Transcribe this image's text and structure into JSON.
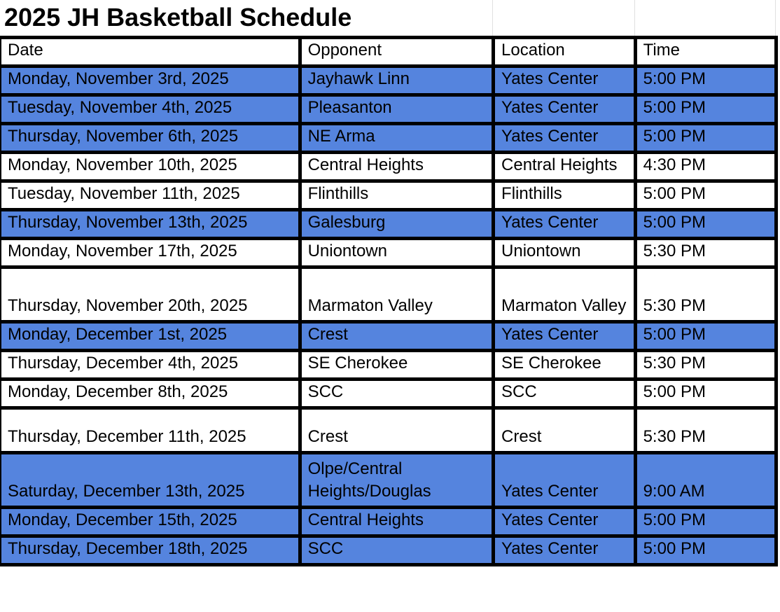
{
  "title": "2025 JH Basketball Schedule",
  "colors": {
    "home_highlight": "#5584de",
    "border": "#000000"
  },
  "columns": [
    "Date",
    "Opponent",
    "Location",
    "Time"
  ],
  "rows": [
    {
      "date": "Monday, November 3rd, 2025",
      "opponent": "Jayhawk Linn",
      "location": "Yates Center",
      "time": "5:00 PM",
      "highlighted": true
    },
    {
      "date": "Tuesday, November 4th, 2025",
      "opponent": "Pleasanton",
      "location": "Yates Center",
      "time": "5:00 PM",
      "highlighted": true
    },
    {
      "date": "Thursday, November 6th, 2025",
      "opponent": "NE Arma",
      "location": "Yates Center",
      "time": "5:00 PM",
      "highlighted": true
    },
    {
      "date": "Monday, November 10th, 2025",
      "opponent": "Central Heights",
      "location": "Central Heights",
      "time": "4:30 PM",
      "highlighted": false
    },
    {
      "date": "Tuesday, November 11th, 2025",
      "opponent": "Flinthills",
      "location": "Flinthills",
      "time": "5:00 PM",
      "highlighted": false
    },
    {
      "date": "Thursday, November 13th, 2025",
      "opponent": "Galesburg",
      "location": "Yates Center",
      "time": "5:00 PM",
      "highlighted": true
    },
    {
      "date": "Monday, November 17th, 2025",
      "opponent": "Uniontown",
      "location": "Uniontown",
      "time": "5:30 PM",
      "highlighted": false
    },
    {
      "date": "Thursday, November 20th, 2025",
      "opponent": "Marmaton Valley",
      "location": "Marmaton Valley",
      "time": "5:30 PM",
      "highlighted": false
    },
    {
      "date": "Monday, December 1st, 2025",
      "opponent": "Crest",
      "location": "Yates Center",
      "time": "5:00 PM",
      "highlighted": true
    },
    {
      "date": "Thursday, December 4th, 2025",
      "opponent": "SE Cherokee",
      "location": "SE Cherokee",
      "time": "5:30 PM",
      "highlighted": false
    },
    {
      "date": "Monday, December 8th, 2025",
      "opponent": "SCC",
      "location": "SCC",
      "time": "5:00 PM",
      "highlighted": false
    },
    {
      "date": "Thursday, December 11th, 2025",
      "opponent": "Crest",
      "location": "Crest",
      "time": "5:30 PM",
      "highlighted": false
    },
    {
      "date": "Saturday, December 13th, 2025",
      "opponent": "Olpe/Central Heights/Douglas",
      "location": "Yates Center",
      "time": "9:00 AM",
      "highlighted": true
    },
    {
      "date": "Monday, December 15th, 2025",
      "opponent": "Central Heights",
      "location": "Yates Center",
      "time": "5:00 PM",
      "highlighted": true
    },
    {
      "date": "Thursday, December 18th, 2025",
      "opponent": "SCC",
      "location": "Yates Center",
      "time": "5:00 PM",
      "highlighted": true
    }
  ]
}
